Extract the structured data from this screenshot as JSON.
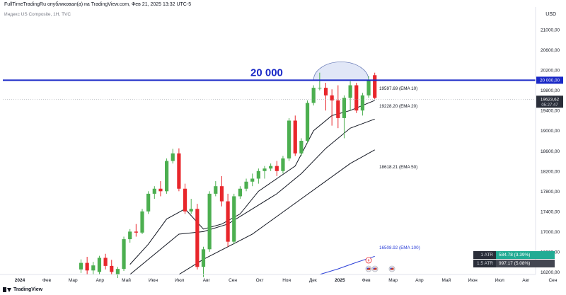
{
  "header": {
    "publisher_line": "FullTimeTradingRu опубликовал(а) на TradingView.com, Фев 21, 2025 13:32 UTC-5",
    "symbol_line": "Индекс US Composite, 1Н, TVC",
    "currency": "USD"
  },
  "footer": {
    "logo_text": "TradingView"
  },
  "atr_panel": {
    "rows": [
      {
        "label": "1 ATR",
        "value": "584.78 (3.39%)",
        "color": "#22ab94"
      },
      {
        "label": "1.5 ATR",
        "value": "997.17 (5.08%)",
        "color": "#434651"
      }
    ]
  },
  "colors": {
    "up": "#4caf50",
    "down": "#e8262b",
    "ema": "#131722",
    "ema100": "#2b3fd8",
    "level": "#1a29c7",
    "dome": "#c8d4f0"
  },
  "chart_data": {
    "type": "candlestick",
    "title": "Индекс US Composite, 1Н, TVC",
    "y_axis": {
      "position": "right",
      "ylim": [
        16150,
        21450
      ],
      "ticks": [
        21000,
        20600,
        20200,
        19800,
        19400,
        19000,
        18600,
        18200,
        17800,
        17400,
        17000,
        16600,
        16200
      ],
      "tick_labels": [
        "21000,00",
        "20600,00",
        "20200,00",
        "19800,00",
        "19400,00",
        "19000,00",
        "18600,00",
        "18200,00",
        "17800,00",
        "17400,00",
        "17000,00",
        "16600,00",
        "16200,00"
      ]
    },
    "x_axis": {
      "labels": [
        {
          "text": "2024",
          "week": 0
        },
        {
          "text": "Фев",
          "week": 4.4
        },
        {
          "text": "Мар",
          "week": 8.7
        },
        {
          "text": "Апр",
          "week": 13.1
        },
        {
          "text": "Май",
          "week": 17.4
        },
        {
          "text": "Июн",
          "week": 21.8
        },
        {
          "text": "Июл",
          "week": 26.1
        },
        {
          "text": "Авг",
          "week": 30.5
        },
        {
          "text": "Сен",
          "week": 34.8
        },
        {
          "text": "Окт",
          "week": 39.2
        },
        {
          "text": "Ноя",
          "week": 43.6
        },
        {
          "text": "Дек",
          "week": 47.9
        },
        {
          "text": "2025",
          "week": 52.3
        },
        {
          "text": "Фев",
          "week": 56.6
        },
        {
          "text": "Мар",
          "week": 61.0
        },
        {
          "text": "Апр",
          "week": 65.3
        },
        {
          "text": "Май",
          "week": 69.7
        },
        {
          "text": "Июн",
          "week": 74.0
        },
        {
          "text": "Июл",
          "week": 78.4
        },
        {
          "text": "Авг",
          "week": 82.7
        },
        {
          "text": "Сен",
          "week": 87.1
        }
      ]
    },
    "candles": [
      {
        "week": 10,
        "o": 16250,
        "h": 16450,
        "l": 16180,
        "c": 16380
      },
      {
        "week": 11,
        "o": 16380,
        "h": 16500,
        "l": 16150,
        "c": 16230
      },
      {
        "week": 12,
        "o": 16230,
        "h": 16400,
        "l": 16150,
        "c": 16330
      },
      {
        "week": 13,
        "o": 16200,
        "h": 16520,
        "l": 16150,
        "c": 16480
      },
      {
        "week": 14,
        "o": 16480,
        "h": 16560,
        "l": 16250,
        "c": 16320
      },
      {
        "week": 15,
        "o": 16320,
        "h": 16440,
        "l": 16150,
        "c": 16200
      },
      {
        "week": 16,
        "o": 16150,
        "h": 16300,
        "l": 16080,
        "c": 16260
      },
      {
        "week": 17,
        "o": 16260,
        "h": 16900,
        "l": 16220,
        "c": 16850
      },
      {
        "week": 18,
        "o": 16850,
        "h": 17050,
        "l": 16780,
        "c": 17000
      },
      {
        "week": 19,
        "o": 17000,
        "h": 17150,
        "l": 16900,
        "c": 16980
      },
      {
        "week": 20,
        "o": 16980,
        "h": 17450,
        "l": 16950,
        "c": 17400
      },
      {
        "week": 21,
        "o": 17400,
        "h": 17800,
        "l": 17350,
        "c": 17750
      },
      {
        "week": 22,
        "o": 17750,
        "h": 17900,
        "l": 17650,
        "c": 17850
      },
      {
        "week": 23,
        "o": 17850,
        "h": 18000,
        "l": 17700,
        "c": 17800
      },
      {
        "week": 24,
        "o": 17800,
        "h": 18450,
        "l": 17750,
        "c": 18400
      },
      {
        "week": 25,
        "o": 18400,
        "h": 18640,
        "l": 18350,
        "c": 18550
      },
      {
        "week": 26,
        "o": 18550,
        "h": 18650,
        "l": 17800,
        "c": 17850
      },
      {
        "week": 27,
        "o": 17850,
        "h": 17950,
        "l": 17350,
        "c": 17400
      },
      {
        "week": 28,
        "o": 17400,
        "h": 17650,
        "l": 17350,
        "c": 17450
      },
      {
        "week": 29,
        "o": 17450,
        "h": 17550,
        "l": 16250,
        "c": 16300
      },
      {
        "week": 30,
        "o": 16300,
        "h": 16700,
        "l": 16100,
        "c": 16650
      },
      {
        "week": 31,
        "o": 16650,
        "h": 17800,
        "l": 16600,
        "c": 17750
      },
      {
        "week": 32,
        "o": 17750,
        "h": 18000,
        "l": 17700,
        "c": 17900
      },
      {
        "week": 33,
        "o": 17900,
        "h": 18100,
        "l": 17500,
        "c": 17600
      },
      {
        "week": 34,
        "o": 17600,
        "h": 17750,
        "l": 16700,
        "c": 16800
      },
      {
        "week": 35,
        "o": 16800,
        "h": 17750,
        "l": 16750,
        "c": 17700
      },
      {
        "week": 36,
        "o": 17700,
        "h": 17900,
        "l": 17650,
        "c": 17850
      },
      {
        "week": 37,
        "o": 17850,
        "h": 18050,
        "l": 17800,
        "c": 17990
      },
      {
        "week": 38,
        "o": 17990,
        "h": 18150,
        "l": 17900,
        "c": 18050
      },
      {
        "week": 39,
        "o": 18050,
        "h": 18250,
        "l": 17950,
        "c": 18200
      },
      {
        "week": 40,
        "o": 18200,
        "h": 18300,
        "l": 18050,
        "c": 18250
      },
      {
        "week": 41,
        "o": 18250,
        "h": 18350,
        "l": 18200,
        "c": 18300
      },
      {
        "week": 42,
        "o": 18300,
        "h": 18400,
        "l": 18100,
        "c": 18200
      },
      {
        "week": 43,
        "o": 18200,
        "h": 18500,
        "l": 18150,
        "c": 18450
      },
      {
        "week": 44,
        "o": 18450,
        "h": 19250,
        "l": 18400,
        "c": 19200
      },
      {
        "week": 45,
        "o": 19200,
        "h": 19300,
        "l": 18500,
        "c": 18550
      },
      {
        "week": 46,
        "o": 18550,
        "h": 18850,
        "l": 18500,
        "c": 18800
      },
      {
        "week": 47,
        "o": 18800,
        "h": 19600,
        "l": 18750,
        "c": 19550
      },
      {
        "week": 48,
        "o": 19550,
        "h": 19900,
        "l": 19500,
        "c": 19850
      },
      {
        "week": 49,
        "o": 19850,
        "h": 20150,
        "l": 19800,
        "c": 19850
      },
      {
        "week": 50,
        "o": 19850,
        "h": 19950,
        "l": 19400,
        "c": 19700
      },
      {
        "week": 51,
        "o": 19700,
        "h": 19820,
        "l": 19100,
        "c": 19600
      },
      {
        "week": 52,
        "o": 19600,
        "h": 19900,
        "l": 19050,
        "c": 19250
      },
      {
        "week": 53,
        "o": 19250,
        "h": 19700,
        "l": 18850,
        "c": 19650
      },
      {
        "week": 54,
        "o": 19650,
        "h": 19980,
        "l": 19400,
        "c": 19900
      },
      {
        "week": 55,
        "o": 19900,
        "h": 19950,
        "l": 19350,
        "c": 19400
      },
      {
        "week": 56,
        "o": 19400,
        "h": 19750,
        "l": 19300,
        "c": 19700
      },
      {
        "week": 57,
        "o": 19700,
        "h": 20080,
        "l": 19650,
        "c": 20000
      },
      {
        "week": 58,
        "o": 20100,
        "h": 20150,
        "l": 19620,
        "c": 19650
      }
    ],
    "ema_lines": [
      {
        "name": "EMA 10",
        "label": "19597.69 (EMA 10)",
        "weeks": [
          18,
          21,
          24,
          27,
          30,
          33,
          36,
          39,
          42,
          45,
          48,
          51,
          54,
          56,
          58
        ],
        "values": [
          16350,
          16750,
          17250,
          17450,
          17050,
          17150,
          17350,
          17800,
          18050,
          18300,
          19000,
          19300,
          19400,
          19500,
          19600
        ]
      },
      {
        "name": "EMA 20",
        "label": "19228.20 (EMA 20)",
        "weeks": [
          18,
          22,
          26,
          30,
          34,
          38,
          42,
          46,
          50,
          54,
          58
        ],
        "values": [
          16150,
          16550,
          16950,
          17000,
          17150,
          17450,
          17750,
          18150,
          18650,
          19050,
          19230
        ]
      },
      {
        "name": "EMA 50",
        "label": "18618.21 (EMA 50)",
        "weeks": [
          26,
          30,
          34,
          38,
          42,
          46,
          50,
          54,
          58
        ],
        "values": [
          16150,
          16450,
          16700,
          16950,
          17300,
          17650,
          18000,
          18350,
          18620
        ]
      },
      {
        "name": "EMA 100",
        "label": "16508.92 (EMA 100)",
        "weeks": [
          49,
          52,
          55,
          58
        ],
        "values": [
          16150,
          16260,
          16390,
          16510
        ]
      }
    ],
    "horizontal_level": {
      "value": 20000,
      "label": "20 000",
      "axis_label": "20 000,00"
    },
    "price_label": {
      "value": "19623,62",
      "time": "05:27:47"
    },
    "dome": {
      "from_week": 48,
      "to_week": 57
    }
  }
}
